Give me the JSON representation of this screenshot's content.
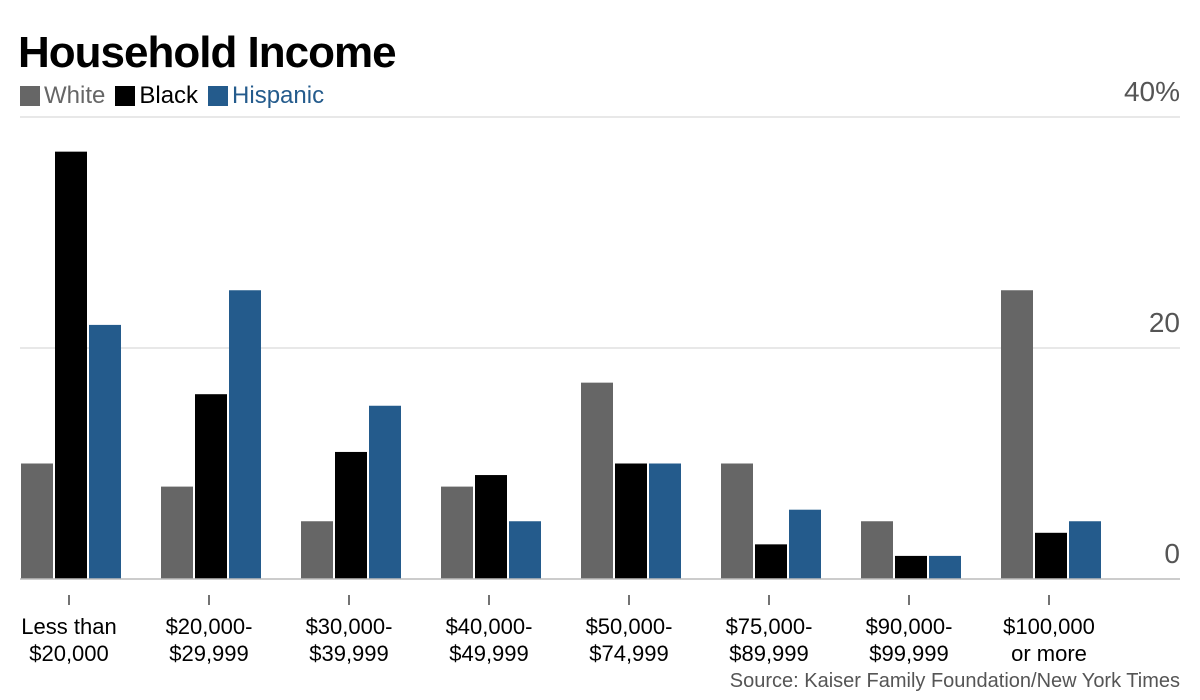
{
  "chart_data": {
    "type": "bar",
    "title": "Household Income",
    "categories": [
      [
        "Less than",
        "$20,000"
      ],
      [
        "$20,000-",
        "$29,999"
      ],
      [
        "$30,000-",
        "$39,999"
      ],
      [
        "$40,000-",
        "$49,999"
      ],
      [
        "$50,000-",
        "$74,999"
      ],
      [
        "$75,000-",
        "$89,999"
      ],
      [
        "$90,000-",
        "$99,999"
      ],
      [
        "$100,000",
        "or more"
      ]
    ],
    "series": [
      {
        "name": "White",
        "color": "#666666",
        "values": [
          10,
          8,
          5,
          8,
          17,
          10,
          5,
          25
        ]
      },
      {
        "name": "Black",
        "color": "#000000",
        "values": [
          37,
          16,
          11,
          9,
          10,
          3,
          2,
          4
        ]
      },
      {
        "name": "Hispanic",
        "color": "#245b8c",
        "values": [
          22,
          25,
          15,
          5,
          10,
          6,
          2,
          5
        ]
      }
    ],
    "yticks": [
      {
        "value": 0,
        "label": "0"
      },
      {
        "value": 20,
        "label": "20"
      },
      {
        "value": 40,
        "label": "40%"
      }
    ],
    "ylim": [
      0,
      40
    ],
    "grid": true,
    "legend_position": "top-left",
    "source": "Source: Kaiser Family Foundation/New York Times"
  }
}
